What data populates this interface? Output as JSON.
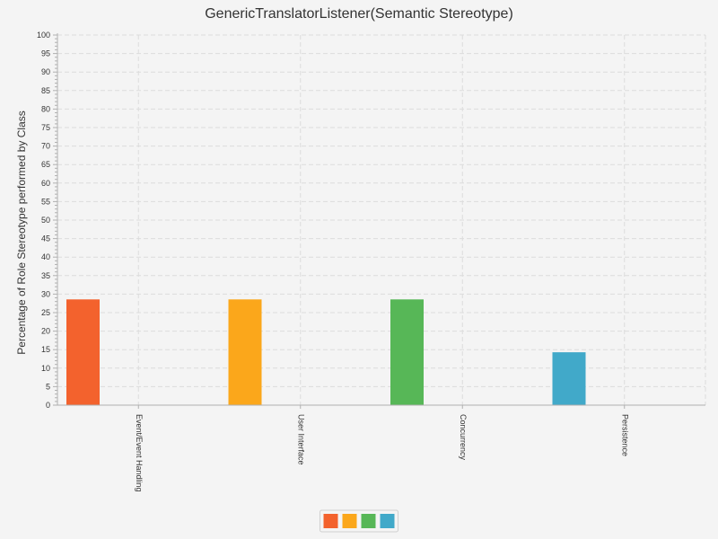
{
  "chart_data": {
    "type": "bar",
    "title": "GenericTranslatorListener(Semantic Stereotype)",
    "xlabel": "",
    "ylabel": "Percentage of Role Stereotype performed by Class",
    "categories": [
      "Event/Event Handling",
      "User Interface",
      "Concurrency",
      "Persistence"
    ],
    "values": [
      28.57,
      28.57,
      28.57,
      14.29
    ],
    "colors": [
      "#f3622d",
      "#fba71b",
      "#57b757",
      "#41a9c9"
    ],
    "ylim": [
      0,
      100
    ],
    "y_ticks": [
      0,
      5,
      10,
      15,
      20,
      25,
      30,
      35,
      40,
      45,
      50,
      55,
      60,
      65,
      70,
      75,
      80,
      85,
      90,
      95,
      100
    ],
    "grid": true,
    "legend": {
      "placement": "bottom-center",
      "entries": [
        {
          "color": "#f3622d"
        },
        {
          "color": "#fba71b"
        },
        {
          "color": "#57b757"
        },
        {
          "color": "#41a9c9"
        }
      ]
    }
  }
}
